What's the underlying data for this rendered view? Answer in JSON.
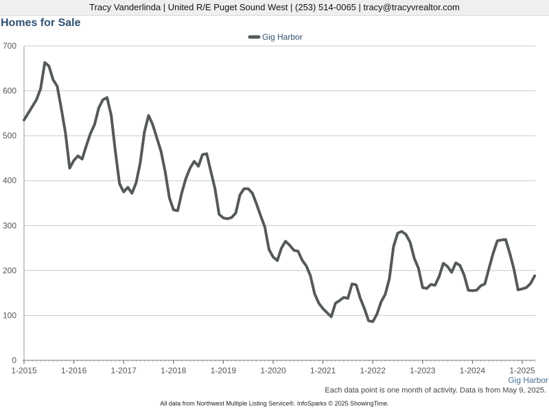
{
  "header": {
    "text": "Tracy Vanderlinda | United R/E Puget Sound West | (253) 514-0065 | tracy@tracyvrealtor.com"
  },
  "page_title": "Homes for Sale",
  "footnote": "Each data point is one month of activity. Data is from May 9, 2025.",
  "footer": "All data from Northwest Multiple Listing Service®. InfoSparks © 2025 ShowingTime.",
  "colors": {
    "series": "#545a58",
    "grid": "#c8c8c8",
    "title": "#2e4f70"
  },
  "chart_data": {
    "type": "line",
    "x_start": "2015-01",
    "x_tick_labels": [
      "1-2015",
      "1-2016",
      "1-2017",
      "1-2018",
      "1-2019",
      "1-2020",
      "1-2021",
      "1-2022",
      "1-2023",
      "1-2024",
      "1-2025"
    ],
    "ylim": [
      0,
      700
    ],
    "y_ticks": [
      0,
      100,
      200,
      300,
      400,
      500,
      600,
      700
    ],
    "grid": true,
    "legend_position": "top-center",
    "series": [
      {
        "name": "Gig Harbor",
        "values": [
          535,
          550,
          565,
          580,
          605,
          663,
          655,
          625,
          610,
          560,
          505,
          428,
          445,
          455,
          448,
          478,
          505,
          525,
          562,
          580,
          585,
          545,
          465,
          393,
          375,
          385,
          372,
          395,
          440,
          508,
          545,
          525,
          495,
          465,
          420,
          362,
          335,
          333,
          373,
          405,
          428,
          443,
          432,
          458,
          460,
          420,
          382,
          325,
          317,
          315,
          318,
          328,
          368,
          382,
          382,
          372,
          348,
          322,
          297,
          247,
          230,
          222,
          250,
          265,
          256,
          245,
          243,
          223,
          210,
          188,
          148,
          127,
          115,
          106,
          97,
          127,
          133,
          140,
          138,
          170,
          168,
          138,
          115,
          88,
          86,
          103,
          130,
          147,
          182,
          253,
          283,
          287,
          280,
          263,
          227,
          205,
          162,
          160,
          169,
          167,
          187,
          216,
          209,
          196,
          217,
          211,
          190,
          156,
          155,
          156,
          166,
          170,
          205,
          238,
          266,
          268,
          269,
          238,
          203,
          157,
          159,
          162,
          171,
          188
        ]
      }
    ]
  }
}
